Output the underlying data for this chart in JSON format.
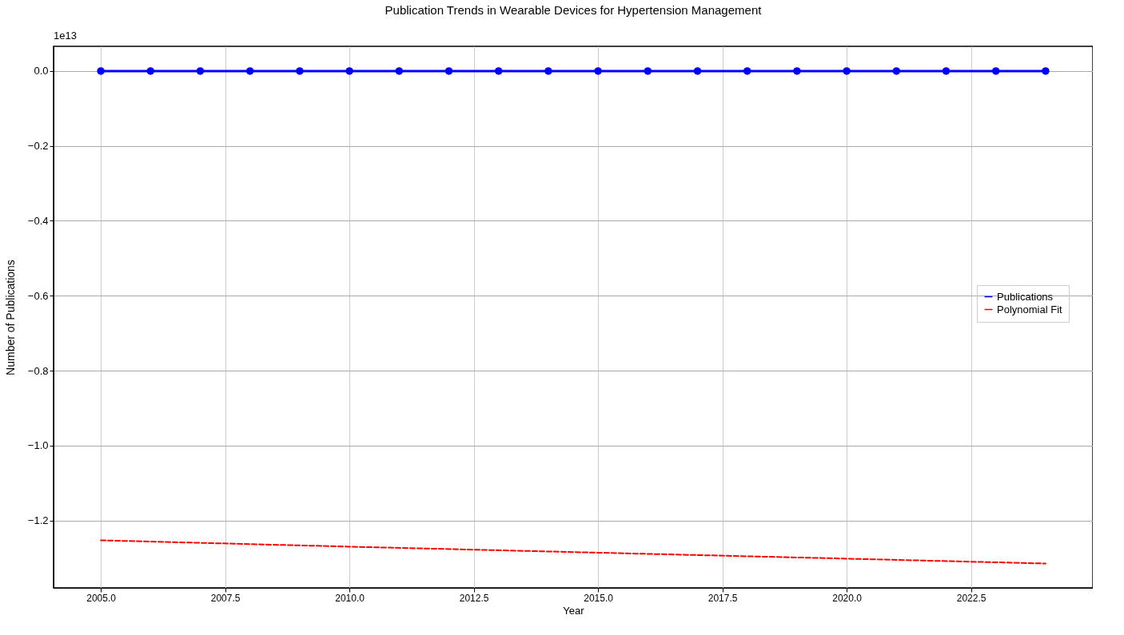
{
  "chart_data": {
    "type": "line",
    "title": "Publication Trends in Wearable Devices for Hypertension Management",
    "xlabel": "Year",
    "ylabel": "Number of Publications",
    "annotations": [
      "1e13"
    ],
    "series": [
      {
        "name": "Publications",
        "color": "#0000ff",
        "marker": "circle",
        "line_style": "solid",
        "x": [
          2005,
          2006,
          2007,
          2008,
          2009,
          2010,
          2011,
          2012,
          2013,
          2014,
          2015,
          2016,
          2017,
          2018,
          2019,
          2020,
          2021,
          2022,
          2023,
          2024
        ],
        "values": [
          0,
          0,
          0,
          0,
          0,
          0,
          0,
          0,
          0,
          0,
          0,
          0,
          0,
          0,
          0,
          0,
          0,
          0,
          0,
          0
        ]
      },
      {
        "name": "Polynomial Fit",
        "type": "line",
        "color": "#ff0000",
        "marker": "none",
        "line_style": "dashed",
        "x": [
          2005,
          2010,
          2015,
          2020,
          2024
        ],
        "values": [
          -1.253,
          -1.27,
          -1.286,
          -1.302,
          -1.315
        ]
      }
    ],
    "xlim": [
      2004.05,
      2024.95
    ],
    "ylim": [
      -1.38,
      0.066
    ],
    "xticks": [
      {
        "value": 2005,
        "label": "2005.0"
      },
      {
        "value": 2007.5,
        "label": "2007.5"
      },
      {
        "value": 2010,
        "label": "2010.0"
      },
      {
        "value": 2012.5,
        "label": "2012.5"
      },
      {
        "value": 2015,
        "label": "2015.0"
      },
      {
        "value": 2017.5,
        "label": "2017.5"
      },
      {
        "value": 2020,
        "label": "2020.0"
      },
      {
        "value": 2022.5,
        "label": "2022.5"
      }
    ],
    "yticks": [
      {
        "value": -1.2,
        "label": "−1.2"
      },
      {
        "value": -1.0,
        "label": "−1.0"
      },
      {
        "value": -0.8,
        "label": "−0.8"
      },
      {
        "value": -0.6,
        "label": "−0.6"
      },
      {
        "value": -0.4,
        "label": "−0.4"
      },
      {
        "value": -0.2,
        "label": "−0.2"
      },
      {
        "value": 0,
        "label": "0.0"
      }
    ],
    "grid": true,
    "legend": "right"
  }
}
